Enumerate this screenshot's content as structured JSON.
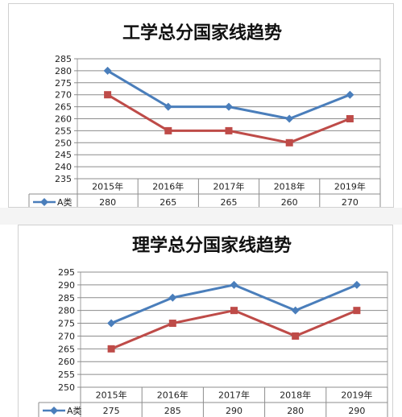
{
  "chart_data": [
    {
      "type": "line",
      "title": "工学总分国家线趋势",
      "categories": [
        "2015年",
        "2016年",
        "2017年",
        "2018年",
        "2019年"
      ],
      "series": [
        {
          "name": "A类",
          "values": [
            280,
            265,
            265,
            260,
            270
          ],
          "color": "#4a7ebb",
          "marker": "diamond"
        },
        {
          "values": [
            270,
            255,
            255,
            250,
            260
          ],
          "color": "#be4b48",
          "marker": "square"
        }
      ],
      "ylim": [
        235,
        285
      ],
      "yticks": [
        "285",
        "280",
        "275",
        "270",
        "265",
        "260",
        "255",
        "250",
        "245",
        "240",
        "235"
      ],
      "grid": true,
      "data_table_values": [
        "280",
        "265",
        "265",
        "260",
        "270"
      ]
    },
    {
      "type": "line",
      "title": "理学总分国家线趋势",
      "categories": [
        "2015年",
        "2016年",
        "2017年",
        "2018年",
        "2019年"
      ],
      "series": [
        {
          "name": "A类",
          "values": [
            275,
            285,
            290,
            280,
            290
          ],
          "color": "#4a7ebb",
          "marker": "diamond"
        },
        {
          "values": [
            265,
            275,
            280,
            270,
            280
          ],
          "color": "#be4b48",
          "marker": "square"
        }
      ],
      "ylim": [
        250,
        295
      ],
      "yticks": [
        "295",
        "290",
        "285",
        "280",
        "275",
        "270",
        "265",
        "260",
        "255",
        "250"
      ],
      "grid": true,
      "data_table_values": [
        "275",
        "285",
        "290",
        "280",
        "290"
      ]
    }
  ]
}
